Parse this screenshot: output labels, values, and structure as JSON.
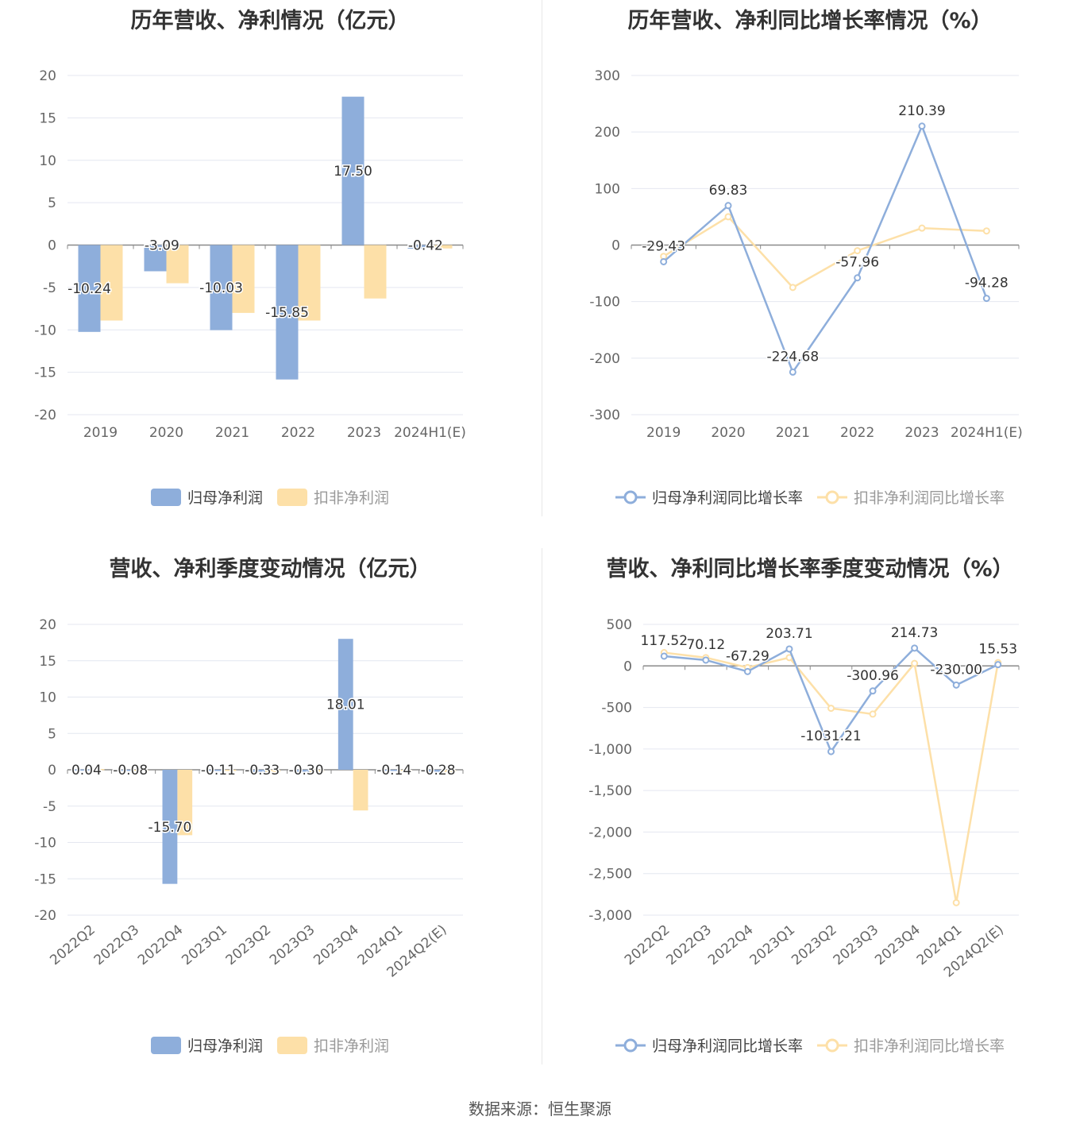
{
  "source": "数据来源：恒生聚源",
  "colors": {
    "series1": "#8eaedb",
    "series2": "#fde0a8"
  },
  "chart_data": [
    {
      "type": "bar",
      "title": "历年营收、净利情况（亿元）",
      "categories": [
        "2019",
        "2020",
        "2021",
        "2022",
        "2023",
        "2024H1(E)"
      ],
      "ylim": [
        -20,
        20
      ],
      "yticks": [
        "20",
        "15",
        "10",
        "5",
        "0",
        "-5",
        "-10",
        "-15",
        "-20"
      ],
      "series": [
        {
          "name": "归母净利润",
          "values": [
            -10.24,
            -3.09,
            -10.03,
            -15.85,
            17.5,
            -0.42
          ],
          "labels": [
            "-10.24",
            "-3.09",
            "-10.03",
            "-15.85",
            "17.50",
            "-0.42"
          ]
        },
        {
          "name": "扣非净利润",
          "values": [
            -8.9,
            -4.5,
            -8.0,
            -8.9,
            -6.3,
            -0.4
          ]
        }
      ],
      "legend": "bottom",
      "grid": true
    },
    {
      "type": "line",
      "title": "历年营收、净利同比增长率情况（%）",
      "categories": [
        "2019",
        "2020",
        "2021",
        "2022",
        "2023",
        "2024H1(E)"
      ],
      "ylim": [
        -300,
        300
      ],
      "yticks": [
        "300",
        "200",
        "100",
        "0",
        "-100",
        "-200",
        "-300"
      ],
      "series": [
        {
          "name": "归母净利润同比增长率",
          "values": [
            -29.43,
            69.83,
            -224.68,
            -57.96,
            210.39,
            -94.28
          ],
          "labels": [
            "-29.43",
            "69.83",
            "-224.68",
            "-57.96",
            "210.39",
            "-94.28"
          ]
        },
        {
          "name": "扣非净利润同比增长率",
          "values": [
            -20,
            50,
            -75,
            -10,
            30,
            25
          ]
        }
      ],
      "legend": "bottom",
      "grid": true
    },
    {
      "type": "bar",
      "title": "营收、净利季度变动情况（亿元）",
      "categories": [
        "2022Q2",
        "2022Q3",
        "2022Q4",
        "2023Q1",
        "2023Q2",
        "2023Q3",
        "2023Q4",
        "2024Q1",
        "2024Q2(E)"
      ],
      "ylim": [
        -20,
        20
      ],
      "yticks": [
        "20",
        "15",
        "10",
        "5",
        "0",
        "-5",
        "-10",
        "-15",
        "-20"
      ],
      "series": [
        {
          "name": "归母净利润",
          "values": [
            0.04,
            -0.08,
            -15.7,
            -0.11,
            -0.33,
            -0.3,
            18.01,
            -0.14,
            -0.28
          ],
          "labels": [
            "0.04",
            "-0.08",
            "-15.70",
            "-0.11",
            "-0.33",
            "-0.30",
            "18.01",
            "-0.14",
            "-0.28"
          ]
        },
        {
          "name": "扣非净利润",
          "values": [
            0.1,
            -0.1,
            -9.0,
            -0.1,
            -0.3,
            -0.3,
            -5.6,
            -0.1,
            -0.3
          ]
        }
      ],
      "legend": "bottom",
      "grid": true
    },
    {
      "type": "line",
      "title": "营收、净利同比增长率季度变动情况（%）",
      "categories": [
        "2022Q2",
        "2022Q3",
        "2022Q4",
        "2023Q1",
        "2023Q2",
        "2023Q3",
        "2023Q4",
        "2024Q1",
        "2024Q2(E)"
      ],
      "ylim": [
        -3000,
        500
      ],
      "yticks": [
        "500",
        "0",
        "-500",
        "-1,000",
        "-1,500",
        "-2,000",
        "-2,500",
        "-3,000"
      ],
      "series": [
        {
          "name": "归母净利润同比增长率",
          "values": [
            117.52,
            70.12,
            -67.29,
            203.71,
            -1031.21,
            -300.96,
            214.73,
            -230.0,
            15.53
          ],
          "labels": [
            "117.52",
            "70.12",
            "-67.29",
            "203.71",
            "-1031.21",
            "-300.96",
            "214.73",
            "-230.00",
            "15.53"
          ]
        },
        {
          "name": "扣非净利润同比增长率",
          "values": [
            160,
            100,
            -20,
            100,
            -510,
            -580,
            30,
            -2850,
            40
          ]
        }
      ],
      "legend": "bottom",
      "grid": true
    }
  ]
}
